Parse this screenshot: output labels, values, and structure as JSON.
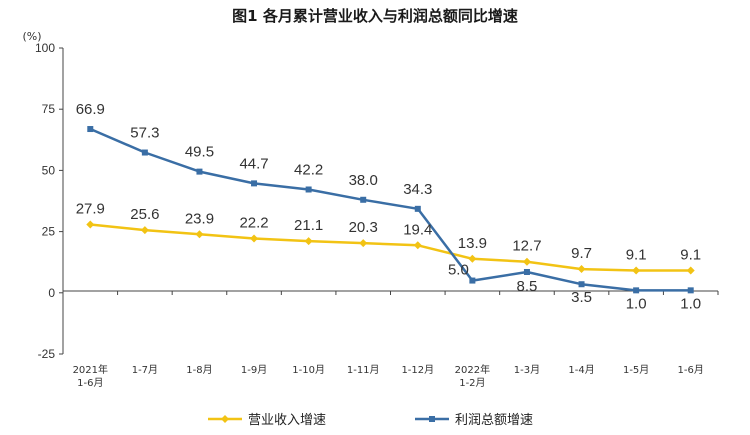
{
  "chart_data": {
    "type": "line",
    "title": "图1  各月累计营业收入与利润总额同比增速",
    "unit_label": "(%)",
    "ylim": [
      -25,
      100
    ],
    "yticks": [
      "100",
      "75",
      "50",
      "25",
      "0",
      "-25"
    ],
    "ytick_values": [
      100,
      75,
      50,
      25,
      0,
      -25
    ],
    "grid": false,
    "legend_position": "bottom",
    "categories": [
      [
        "2021年",
        "1-6月"
      ],
      [
        "1-7月"
      ],
      [
        "1-8月"
      ],
      [
        "1-9月"
      ],
      [
        "1-10月"
      ],
      [
        "1-11月"
      ],
      [
        "1-12月"
      ],
      [
        "2022年",
        "1-2月"
      ],
      [
        "1-3月"
      ],
      [
        "1-4月"
      ],
      [
        "1-5月"
      ],
      [
        "1-6月"
      ]
    ],
    "series": [
      {
        "name": "营业收入增速",
        "color": "#f2c314",
        "marker": "diamond",
        "values": [
          27.9,
          25.6,
          23.9,
          22.2,
          21.1,
          20.3,
          19.4,
          13.9,
          12.7,
          9.7,
          9.1,
          9.1
        ],
        "labels": [
          "27.9",
          "25.6",
          "23.9",
          "22.2",
          "21.1",
          "20.3",
          "19.4",
          "13.9",
          "12.7",
          "9.7",
          "9.1",
          "9.1"
        ]
      },
      {
        "name": "利润总额增速",
        "color": "#3a6ea5",
        "marker": "square",
        "values": [
          66.9,
          57.3,
          49.5,
          44.7,
          42.2,
          38.0,
          34.3,
          5.0,
          8.5,
          3.5,
          1.0,
          1.0
        ],
        "labels": [
          "66.9",
          "57.3",
          "49.5",
          "44.7",
          "42.2",
          "38.0",
          "34.3",
          "5.0",
          "8.5",
          "3.5",
          "1.0",
          "1.0"
        ]
      }
    ]
  }
}
